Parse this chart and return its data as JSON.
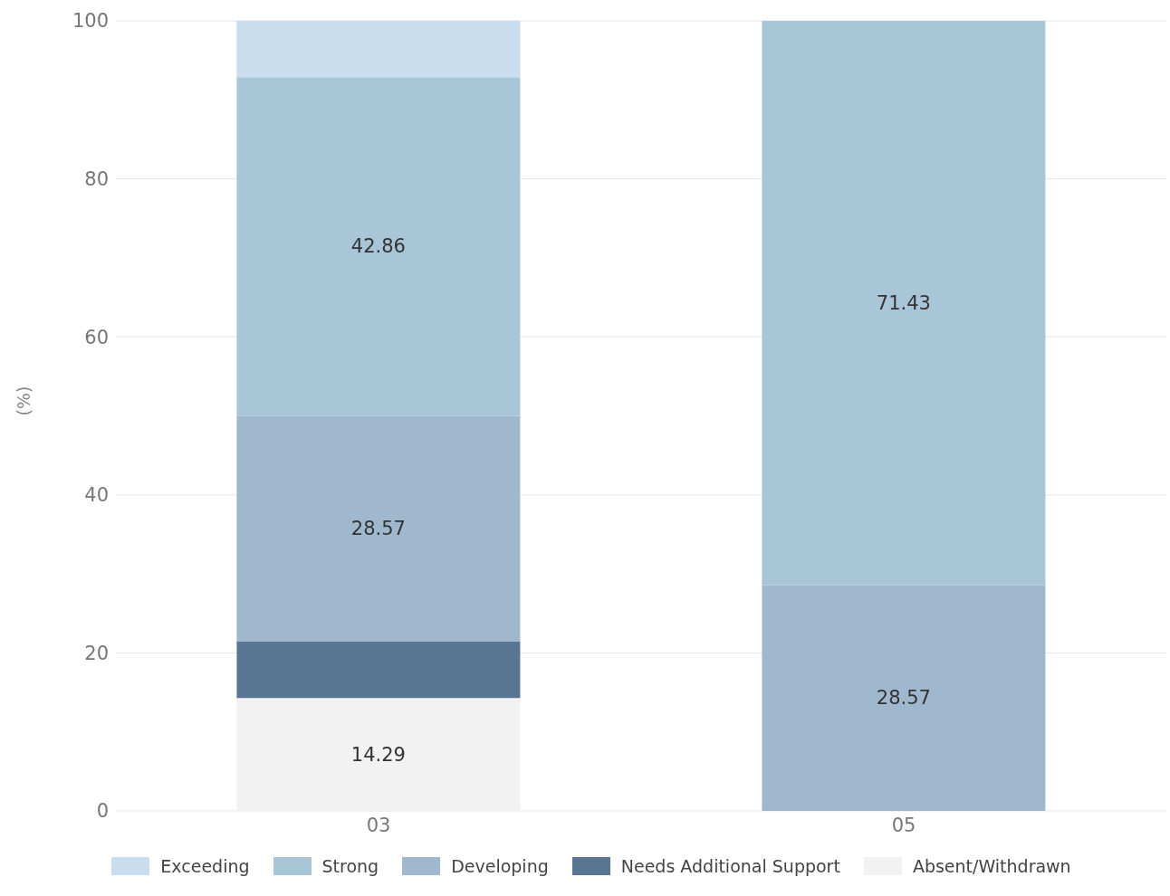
{
  "chart_data": {
    "type": "bar",
    "stacked": true,
    "categories": [
      "03",
      "05"
    ],
    "ylabel": "(%)",
    "ylim": [
      0,
      100
    ],
    "yticks": [
      0,
      20,
      40,
      60,
      80,
      100
    ],
    "grid": "y",
    "legend": "bottom",
    "series": [
      {
        "name": "Absent/Withdrawn",
        "color": "#f2f2f3",
        "values": [
          14.29,
          0
        ],
        "value_labels": [
          "14.29",
          null
        ]
      },
      {
        "name": "Needs Additional Support",
        "color": "#587591",
        "values": [
          7.14,
          0
        ],
        "value_labels": [
          null,
          null
        ]
      },
      {
        "name": "Developing",
        "color": "#9fb8cd",
        "values": [
          28.57,
          28.57
        ],
        "value_labels": [
          "28.57",
          "28.57"
        ]
      },
      {
        "name": "Strong",
        "color": "#a9c5d8",
        "values": [
          42.86,
          71.43
        ],
        "value_labels": [
          "42.86",
          "71.43"
        ]
      },
      {
        "name": "Exceeding",
        "color": "#c9ddef",
        "values": [
          7.14,
          0
        ],
        "value_labels": [
          null,
          null
        ]
      }
    ]
  }
}
